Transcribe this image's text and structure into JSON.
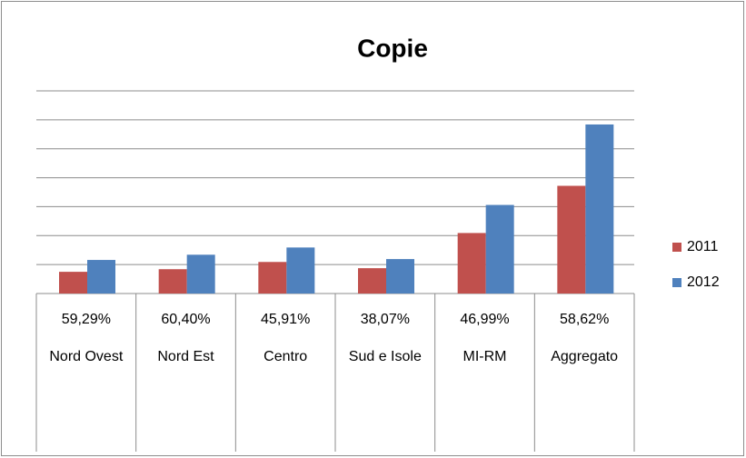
{
  "chart_data": {
    "type": "bar",
    "title": "Copie",
    "categories": [
      "Nord Ovest",
      "Nord Est",
      "Centro",
      "Sud e Isole",
      "MI-RM",
      "Aggregato"
    ],
    "table_row": [
      "59,29%",
      "60,40%",
      "45,91%",
      "38,07%",
      "46,99%",
      "58,62%"
    ],
    "series": [
      {
        "name": "2011",
        "color": "#c0504d",
        "values": [
          0.75,
          0.84,
          1.09,
          0.875,
          2.09,
          3.72
        ]
      },
      {
        "name": "2012",
        "color": "#4f81bd",
        "values": [
          1.16,
          1.34,
          1.59,
          1.19,
          3.06,
          5.84
        ]
      }
    ],
    "ylim": [
      0,
      7
    ],
    "yticks": [
      0,
      1,
      2,
      3,
      4,
      5,
      6,
      7
    ],
    "grid": true,
    "legend": "right"
  }
}
